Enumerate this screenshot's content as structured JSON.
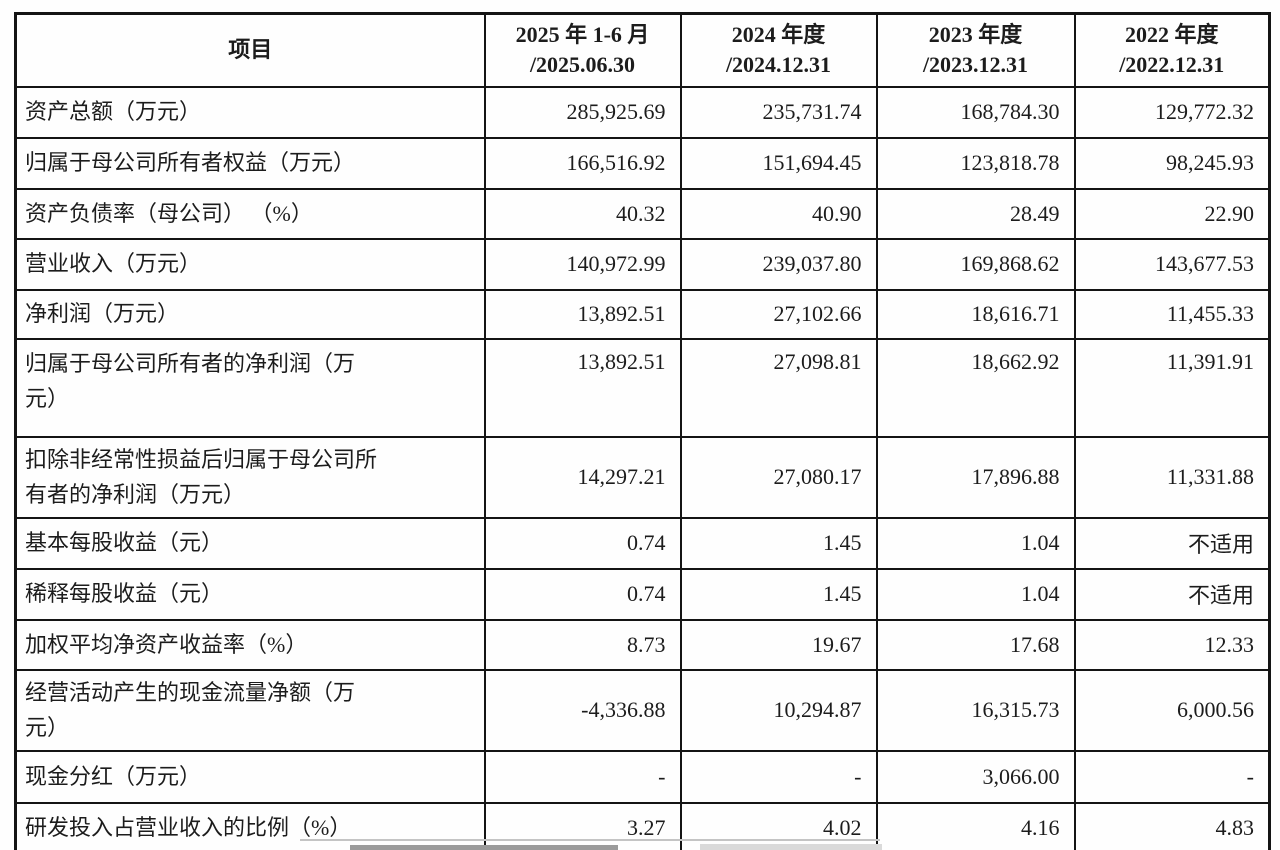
{
  "table": {
    "header": {
      "item_col": "项目",
      "period_cols": [
        {
          "period": "2025 年 1-6 月",
          "date": "/2025.06.30"
        },
        {
          "period": "2024 年度",
          "date": "/2024.12.31"
        },
        {
          "period": "2023 年度",
          "date": "/2023.12.31"
        },
        {
          "period": "2022 年度",
          "date": "/2022.12.31"
        }
      ]
    },
    "rows": [
      {
        "label": "资产总额（万元）",
        "values": [
          "285,925.69",
          "235,731.74",
          "168,784.30",
          "129,772.32"
        ]
      },
      {
        "label": "归属于母公司所有者权益（万元）",
        "values": [
          "166,516.92",
          "151,694.45",
          "123,818.78",
          "98,245.93"
        ]
      },
      {
        "label": "资产负债率（母公司） （%）",
        "values": [
          "40.32",
          "40.90",
          "28.49",
          "22.90"
        ]
      },
      {
        "label": "营业收入（万元）",
        "values": [
          "140,972.99",
          "239,037.80",
          "169,868.62",
          "143,677.53"
        ]
      },
      {
        "label": "净利润（万元）",
        "values": [
          "13,892.51",
          "27,102.66",
          "18,616.71",
          "11,455.33"
        ]
      },
      {
        "label": "归属于母公司所有者的净利润（万\n元）",
        "values": [
          "13,892.51",
          "27,098.81",
          "18,662.92",
          "11,391.91"
        ]
      },
      {
        "label": "扣除非经常性损益后归属于母公司所\n有者的净利润（万元）",
        "values": [
          "14,297.21",
          "27,080.17",
          "17,896.88",
          "11,331.88"
        ]
      },
      {
        "label": "基本每股收益（元）",
        "values": [
          "0.74",
          "1.45",
          "1.04",
          "不适用"
        ]
      },
      {
        "label": "稀释每股收益（元）",
        "values": [
          "0.74",
          "1.45",
          "1.04",
          "不适用"
        ]
      },
      {
        "label": "加权平均净资产收益率（%）",
        "values": [
          "8.73",
          "19.67",
          "17.68",
          "12.33"
        ]
      },
      {
        "label": "经营活动产生的现金流量净额（万\n元）",
        "values": [
          "-4,336.88",
          "10,294.87",
          "16,315.73",
          "6,000.56"
        ]
      },
      {
        "label": "现金分红（万元）",
        "values": [
          "-",
          "-",
          "3,066.00",
          "-"
        ]
      },
      {
        "label": "研发投入占营业收入的比例（%）",
        "values": [
          "3.27",
          "4.02",
          "4.16",
          "4.83"
        ]
      }
    ]
  },
  "colors": {
    "border": "#141414",
    "text": "#1c1c1c",
    "background": "#fefefe"
  }
}
